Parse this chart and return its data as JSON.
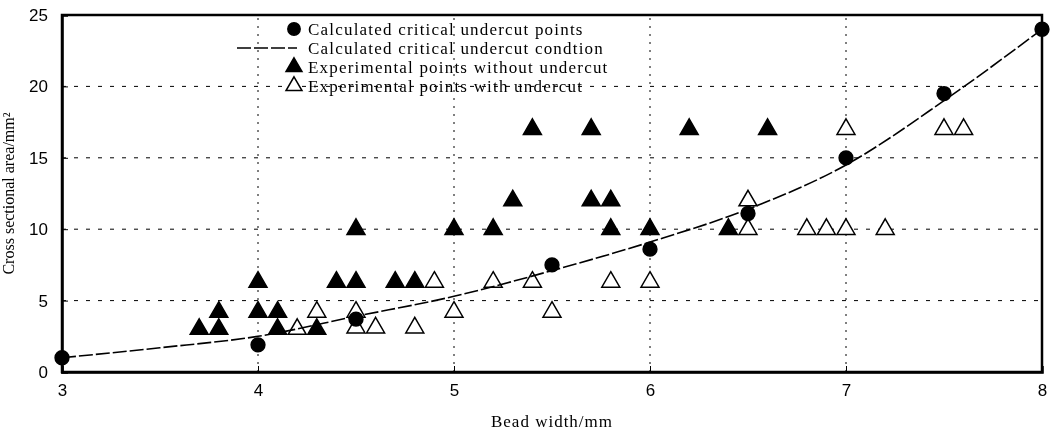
{
  "chart_data": {
    "type": "scatter",
    "xlabel": "Bead width/mm",
    "ylabel": "Cross sectional area/mm²",
    "xlim": [
      3,
      8
    ],
    "ylim": [
      0,
      25
    ],
    "xticks": [
      3,
      4,
      5,
      6,
      7,
      8
    ],
    "yticks": [
      0,
      5,
      10,
      15,
      20,
      25
    ],
    "grid": true,
    "legend": "top left",
    "series": [
      {
        "name": "Calculated critical undercut points",
        "marker": "circle",
        "color": "#000000",
        "x": [
          3,
          4,
          4.5,
          5.5,
          6,
          6.5,
          7,
          7.5,
          8
        ],
        "values": [
          1,
          1.9,
          3.7,
          7.5,
          8.6,
          11.1,
          15,
          19.5,
          24
        ]
      },
      {
        "name": "Calculated critical undercut condtion",
        "type": "line",
        "marker": "none",
        "line_style": "dashed",
        "color": "#000000",
        "x": [
          3,
          3.5,
          4,
          4.5,
          5,
          5.5,
          6,
          6.5,
          7,
          7.5,
          8
        ],
        "values": [
          1,
          1.7,
          2.5,
          3.9,
          5.3,
          7.1,
          9.1,
          11.4,
          14.5,
          19,
          24
        ]
      },
      {
        "name": "Experimental points without undercut",
        "marker": "triangle",
        "color": "#000000",
        "x": [
          3.7,
          3.8,
          3.8,
          4,
          4,
          4.1,
          4.1,
          4.3,
          4.4,
          4.5,
          4.5,
          4.7,
          4.8,
          5,
          5.2,
          5.3,
          5.4,
          5.7,
          5.7,
          5.8,
          5.8,
          6,
          6.2,
          6.4,
          6.6
        ],
        "values": [
          3,
          4.2,
          3,
          6.3,
          4.2,
          4.2,
          3,
          3,
          6.3,
          6.3,
          10,
          6.3,
          6.3,
          10,
          10,
          12,
          17,
          17,
          12,
          12,
          10,
          10,
          17,
          10,
          17
        ]
      },
      {
        "name": "Experimental points with undercut",
        "marker": "triangle",
        "color": "#ffffff",
        "x": [
          4.2,
          4.3,
          4.5,
          4.5,
          4.6,
          4.8,
          4.9,
          5,
          5.2,
          5.4,
          5.5,
          5.8,
          6,
          6.5,
          6.5,
          6.8,
          6.9,
          7,
          7,
          7.2,
          7.5,
          7.6
        ],
        "values": [
          3,
          4.2,
          4.2,
          3.1,
          3.1,
          3.1,
          6.3,
          4.2,
          6.3,
          6.3,
          4.2,
          6.3,
          6.3,
          10,
          12,
          10,
          10,
          10,
          17,
          10,
          17,
          17
        ]
      }
    ]
  }
}
